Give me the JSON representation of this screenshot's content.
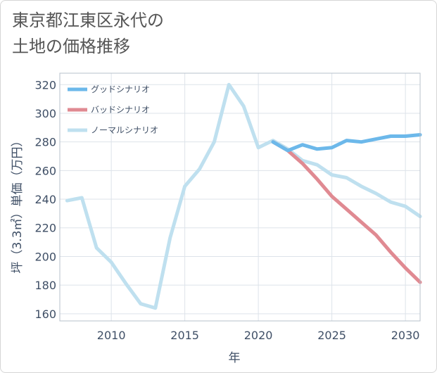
{
  "title_line1": "東京都江東区永代の",
  "title_line2": "土地の価格推移",
  "chart_data": {
    "type": "line",
    "xlabel": "年",
    "ylabel": "坪（3.3㎡）単価（万円）",
    "xlim": [
      2006.5,
      2031
    ],
    "ylim": [
      155,
      328
    ],
    "x_ticks": [
      2010,
      2015,
      2020,
      2025,
      2030
    ],
    "y_ticks": [
      160,
      180,
      200,
      220,
      240,
      260,
      280,
      300,
      320
    ],
    "grid": true,
    "legend_position": "top-left",
    "series": [
      {
        "name": "グッドシナリオ",
        "color": "#6cb8ea",
        "x": [
          2021,
          2022,
          2023,
          2024,
          2025,
          2026,
          2027,
          2028,
          2029,
          2030,
          2031
        ],
        "y": [
          280,
          274,
          278,
          275,
          276,
          281,
          280,
          282,
          284,
          284,
          285
        ]
      },
      {
        "name": "バッドシナリオ",
        "color": "#e08a92",
        "x": [
          2021,
          2022,
          2023,
          2024,
          2025,
          2026,
          2027,
          2028,
          2029,
          2030,
          2031
        ],
        "y": [
          280,
          274,
          265,
          254,
          242,
          233,
          224,
          215,
          203,
          192,
          182
        ]
      },
      {
        "name": "ノーマルシナリオ",
        "color": "#bfe0ef",
        "x": [
          2007,
          2008,
          2009,
          2010,
          2011,
          2012,
          2013,
          2014,
          2015,
          2016,
          2017,
          2018,
          2019,
          2020,
          2021,
          2022,
          2023,
          2024,
          2025,
          2026,
          2027,
          2028,
          2029,
          2030,
          2031
        ],
        "y": [
          239,
          241,
          206,
          196,
          181,
          167,
          164,
          213,
          249,
          261,
          280,
          320,
          305,
          276,
          281,
          275,
          267,
          264,
          257,
          255,
          249,
          244,
          238,
          235,
          228
        ]
      }
    ]
  }
}
